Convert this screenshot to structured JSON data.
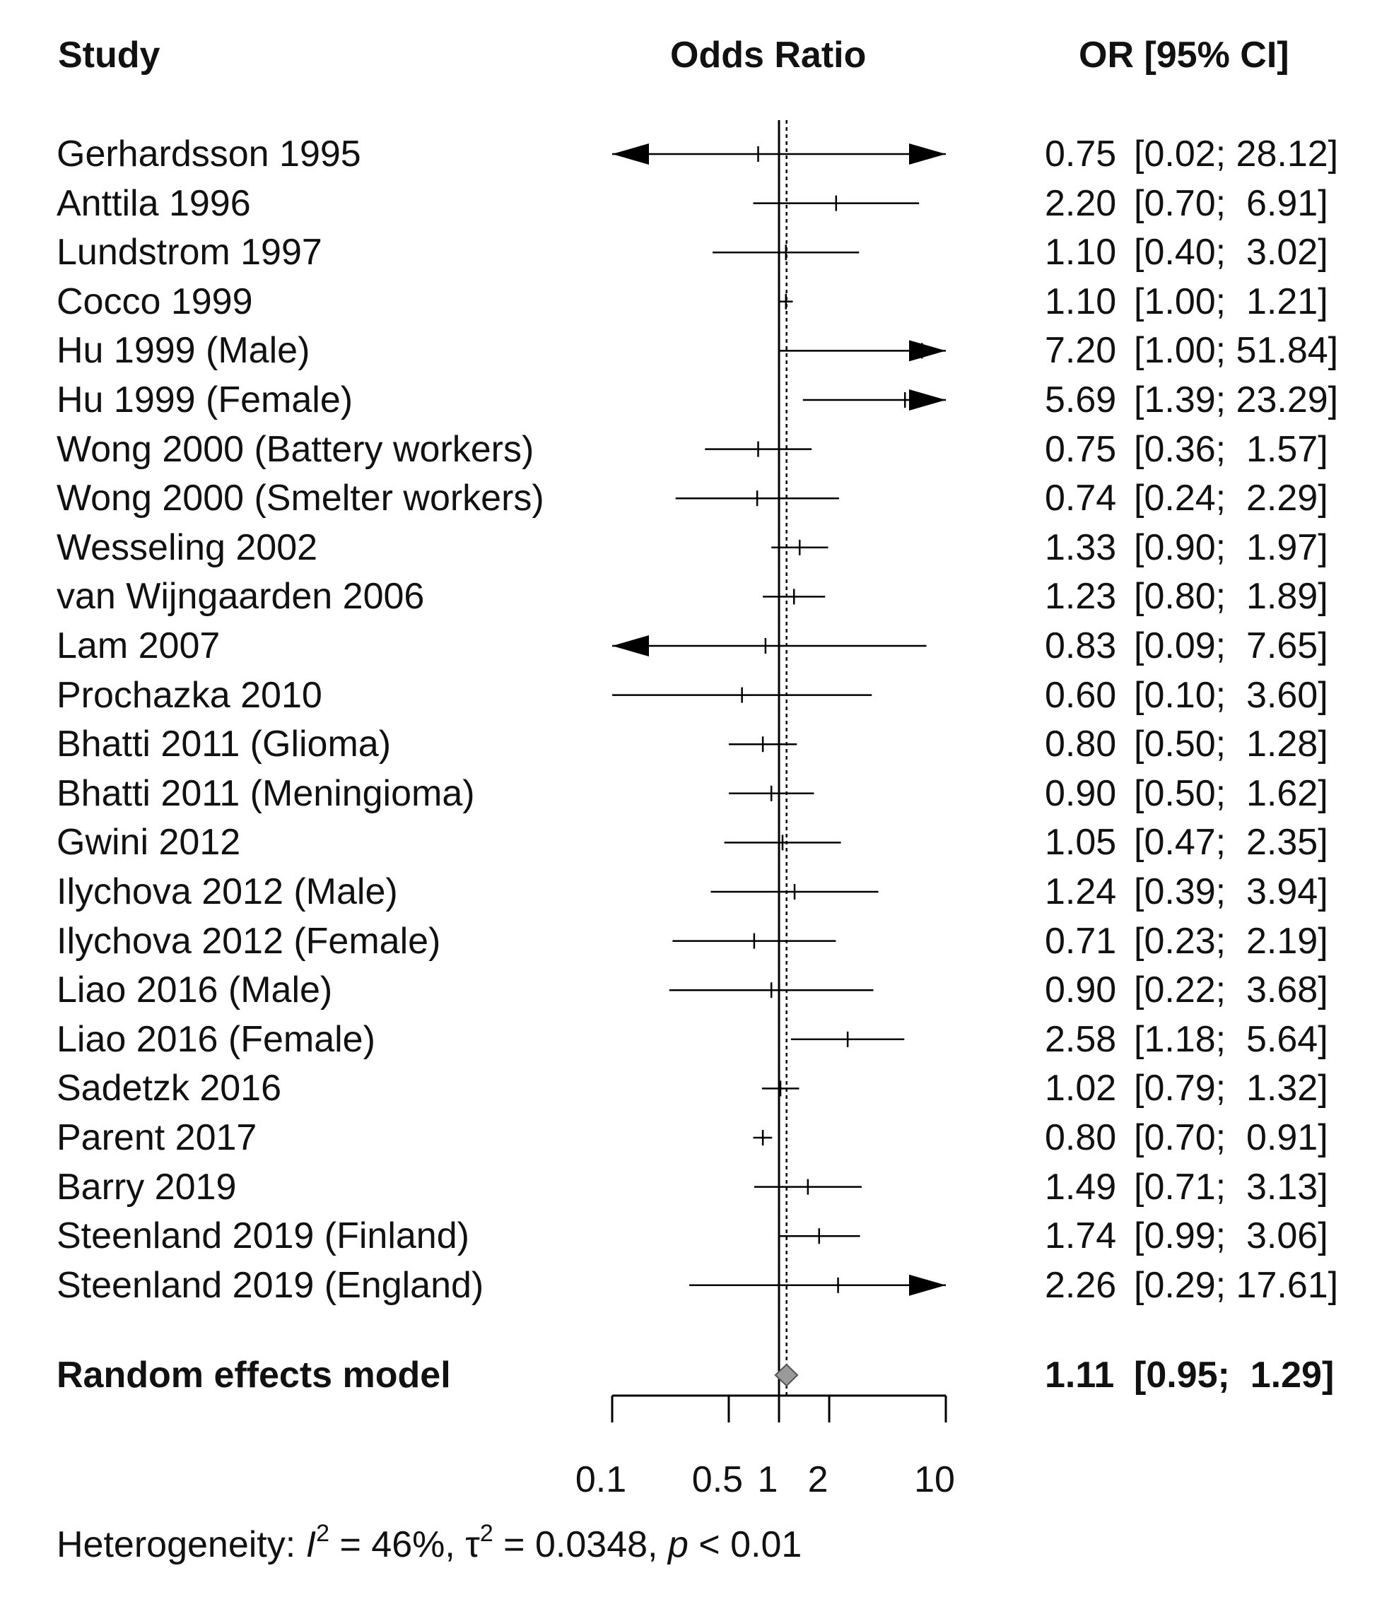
{
  "chart_data": {
    "type": "forest",
    "xscale": "log",
    "xlim": [
      0.1,
      10
    ],
    "ref_line": 1,
    "summary_line": 1.11,
    "headers": {
      "study": "Study",
      "plot": "Odds Ratio",
      "estimate": "OR [95% CI]"
    },
    "ticks": [
      {
        "value": 0.1,
        "label": "0.1"
      },
      {
        "value": 0.5,
        "label": "0.5"
      },
      {
        "value": 1,
        "label": "1"
      },
      {
        "value": 2,
        "label": "2"
      },
      {
        "value": 10,
        "label": "10"
      }
    ],
    "studies": [
      {
        "name": "Gerhardsson 1995",
        "or": 0.75,
        "lo": 0.02,
        "hi": 28.12,
        "or_text": "0.75",
        "ci_text": "[0.02; 28.12]"
      },
      {
        "name": "Anttila 1996",
        "or": 2.2,
        "lo": 0.7,
        "hi": 6.91,
        "or_text": "2.20",
        "ci_text": "[0.70;  6.91]"
      },
      {
        "name": "Lundstrom 1997",
        "or": 1.1,
        "lo": 0.4,
        "hi": 3.02,
        "or_text": "1.10",
        "ci_text": "[0.40;  3.02]"
      },
      {
        "name": "Cocco 1999",
        "or": 1.1,
        "lo": 1.0,
        "hi": 1.21,
        "or_text": "1.10",
        "ci_text": "[1.00;  1.21]"
      },
      {
        "name": "Hu 1999 (Male)",
        "or": 7.2,
        "lo": 1.0,
        "hi": 51.84,
        "or_text": "7.20",
        "ci_text": "[1.00; 51.84]"
      },
      {
        "name": "Hu 1999 (Female)",
        "or": 5.69,
        "lo": 1.39,
        "hi": 23.29,
        "or_text": "5.69",
        "ci_text": "[1.39; 23.29]"
      },
      {
        "name": "Wong 2000 (Battery workers)",
        "or": 0.75,
        "lo": 0.36,
        "hi": 1.57,
        "or_text": "0.75",
        "ci_text": "[0.36;  1.57]"
      },
      {
        "name": "Wong 2000 (Smelter workers)",
        "or": 0.74,
        "lo": 0.24,
        "hi": 2.29,
        "or_text": "0.74",
        "ci_text": "[0.24;  2.29]"
      },
      {
        "name": "Wesseling 2002",
        "or": 1.33,
        "lo": 0.9,
        "hi": 1.97,
        "or_text": "1.33",
        "ci_text": "[0.90;  1.97]"
      },
      {
        "name": "van Wijngaarden 2006",
        "or": 1.23,
        "lo": 0.8,
        "hi": 1.89,
        "or_text": "1.23",
        "ci_text": "[0.80;  1.89]"
      },
      {
        "name": "Lam 2007",
        "or": 0.83,
        "lo": 0.09,
        "hi": 7.65,
        "or_text": "0.83",
        "ci_text": "[0.09;  7.65]"
      },
      {
        "name": "Prochazka 2010",
        "or": 0.6,
        "lo": 0.1,
        "hi": 3.6,
        "or_text": "0.60",
        "ci_text": "[0.10;  3.60]"
      },
      {
        "name": "Bhatti 2011 (Glioma)",
        "or": 0.8,
        "lo": 0.5,
        "hi": 1.28,
        "or_text": "0.80",
        "ci_text": "[0.50;  1.28]"
      },
      {
        "name": "Bhatti 2011 (Meningioma)",
        "or": 0.9,
        "lo": 0.5,
        "hi": 1.62,
        "or_text": "0.90",
        "ci_text": "[0.50;  1.62]"
      },
      {
        "name": "Gwini 2012",
        "or": 1.05,
        "lo": 0.47,
        "hi": 2.35,
        "or_text": "1.05",
        "ci_text": "[0.47;  2.35]"
      },
      {
        "name": "Ilychova 2012 (Male)",
        "or": 1.24,
        "lo": 0.39,
        "hi": 3.94,
        "or_text": "1.24",
        "ci_text": "[0.39;  3.94]"
      },
      {
        "name": "Ilychova 2012 (Female)",
        "or": 0.71,
        "lo": 0.23,
        "hi": 2.19,
        "or_text": "0.71",
        "ci_text": "[0.23;  2.19]"
      },
      {
        "name": "Liao 2016 (Male)",
        "or": 0.9,
        "lo": 0.22,
        "hi": 3.68,
        "or_text": "0.90",
        "ci_text": "[0.22;  3.68]"
      },
      {
        "name": "Liao 2016 (Female)",
        "or": 2.58,
        "lo": 1.18,
        "hi": 5.64,
        "or_text": "2.58",
        "ci_text": "[1.18;  5.64]"
      },
      {
        "name": "Sadetzk 2016",
        "or": 1.02,
        "lo": 0.79,
        "hi": 1.32,
        "or_text": "1.02",
        "ci_text": "[0.79;  1.32]"
      },
      {
        "name": "Parent 2017",
        "or": 0.8,
        "lo": 0.7,
        "hi": 0.91,
        "or_text": "0.80",
        "ci_text": "[0.70;  0.91]"
      },
      {
        "name": "Barry 2019",
        "or": 1.49,
        "lo": 0.71,
        "hi": 3.13,
        "or_text": "1.49",
        "ci_text": "[0.71;  3.13]"
      },
      {
        "name": "Steenland 2019 (Finland)",
        "or": 1.74,
        "lo": 0.99,
        "hi": 3.06,
        "or_text": "1.74",
        "ci_text": "[0.99;  3.06]"
      },
      {
        "name": "Steenland 2019 (England)",
        "or": 2.26,
        "lo": 0.29,
        "hi": 17.61,
        "or_text": "2.26",
        "ci_text": "[0.29; 17.61]"
      }
    ],
    "summary": {
      "name": "Random effects model",
      "or": 1.11,
      "lo": 0.95,
      "hi": 1.29,
      "or_text": "1.11",
      "ci_text": "[0.95;  1.29]"
    },
    "heterogeneity": {
      "prefix": "Heterogeneity: ",
      "i2_symbol": "I",
      "i2_sup": "2",
      "i2_value": " = 46%, ",
      "tau2_symbol": "τ",
      "tau2_sup": "2",
      "tau2_value": " = 0.0348, ",
      "p_symbol": "p",
      "p_value": " < 0.01"
    }
  }
}
